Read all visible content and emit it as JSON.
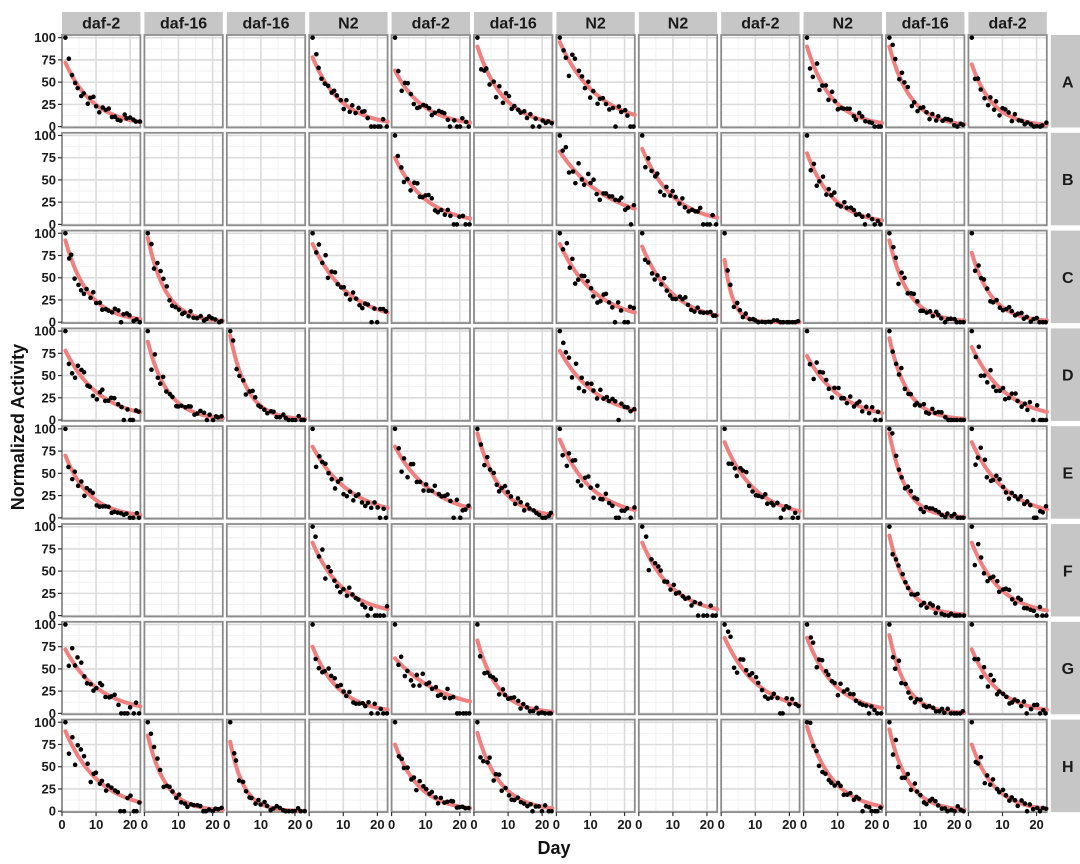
{
  "chart_data": {
    "type": "scatter",
    "title": "",
    "xlabel": "Day",
    "ylabel": "Normalized Activity",
    "xlim": [
      0,
      23
    ],
    "ylim": [
      -1,
      103
    ],
    "x_ticks": [
      0,
      10,
      20
    ],
    "y_ticks": [
      0,
      25,
      50,
      75,
      100
    ],
    "grid": true,
    "columns": [
      "daf-2",
      "daf-16",
      "daf-16",
      "N2",
      "daf-2",
      "daf-16",
      "N2",
      "N2",
      "daf-2",
      "N2",
      "daf-16",
      "daf-2"
    ],
    "rows": [
      "A",
      "B",
      "C",
      "D",
      "E",
      "F",
      "G",
      "H"
    ],
    "fit_color": "#f08080",
    "point_color": "#000000",
    "panels": [
      {
        "row": "A",
        "col": 1,
        "fit_start": 72,
        "fit_rate": 0.12
      },
      {
        "row": "A",
        "col": 4,
        "fit_start": 78,
        "fit_rate": 0.12
      },
      {
        "row": "A",
        "col": 5,
        "fit_start": 63,
        "fit_rate": 0.12
      },
      {
        "row": "A",
        "col": 6,
        "fit_start": 90,
        "fit_rate": 0.13
      },
      {
        "row": "A",
        "col": 7,
        "fit_start": 95,
        "fit_rate": 0.09
      },
      {
        "row": "A",
        "col": 10,
        "fit_start": 90,
        "fit_rate": 0.14
      },
      {
        "row": "A",
        "col": 11,
        "fit_start": 90,
        "fit_rate": 0.16
      },
      {
        "row": "A",
        "col": 12,
        "fit_start": 70,
        "fit_rate": 0.16
      },
      {
        "row": "B",
        "col": 5,
        "fit_start": 75,
        "fit_rate": 0.11
      },
      {
        "row": "B",
        "col": 7,
        "fit_start": 82,
        "fit_rate": 0.07
      },
      {
        "row": "B",
        "col": 8,
        "fit_start": 85,
        "fit_rate": 0.11
      },
      {
        "row": "B",
        "col": 10,
        "fit_start": 80,
        "fit_rate": 0.13
      },
      {
        "row": "C",
        "col": 1,
        "fit_start": 92,
        "fit_rate": 0.15
      },
      {
        "row": "C",
        "col": 2,
        "fit_start": 95,
        "fit_rate": 0.19
      },
      {
        "row": "C",
        "col": 4,
        "fit_start": 88,
        "fit_rate": 0.095
      },
      {
        "row": "C",
        "col": 7,
        "fit_start": 88,
        "fit_rate": 0.095
      },
      {
        "row": "C",
        "col": 8,
        "fit_start": 85,
        "fit_rate": 0.11
      },
      {
        "row": "C",
        "col": 9,
        "fit_start": 70,
        "fit_rate": 0.4
      },
      {
        "row": "C",
        "col": 11,
        "fit_start": 92,
        "fit_rate": 0.18
      },
      {
        "row": "C",
        "col": 12,
        "fit_start": 78,
        "fit_rate": 0.17
      },
      {
        "row": "D",
        "col": 1,
        "fit_start": 78,
        "fit_rate": 0.1
      },
      {
        "row": "D",
        "col": 2,
        "fit_start": 88,
        "fit_rate": 0.17
      },
      {
        "row": "D",
        "col": 3,
        "fit_start": 95,
        "fit_rate": 0.2
      },
      {
        "row": "D",
        "col": 7,
        "fit_start": 78,
        "fit_rate": 0.09
      },
      {
        "row": "D",
        "col": 10,
        "fit_start": 72,
        "fit_rate": 0.1
      },
      {
        "row": "D",
        "col": 11,
        "fit_start": 92,
        "fit_rate": 0.19
      },
      {
        "row": "D",
        "col": 12,
        "fit_start": 82,
        "fit_rate": 0.1
      },
      {
        "row": "E",
        "col": 1,
        "fit_start": 70,
        "fit_rate": 0.14
      },
      {
        "row": "E",
        "col": 4,
        "fit_start": 80,
        "fit_rate": 0.09
      },
      {
        "row": "E",
        "col": 5,
        "fit_start": 80,
        "fit_rate": 0.09
      },
      {
        "row": "E",
        "col": 6,
        "fit_start": 95,
        "fit_rate": 0.15
      },
      {
        "row": "E",
        "col": 7,
        "fit_start": 88,
        "fit_rate": 0.105
      },
      {
        "row": "E",
        "col": 9,
        "fit_start": 85,
        "fit_rate": 0.11
      },
      {
        "row": "E",
        "col": 11,
        "fit_start": 95,
        "fit_rate": 0.21
      },
      {
        "row": "E",
        "col": 12,
        "fit_start": 85,
        "fit_rate": 0.1
      },
      {
        "row": "F",
        "col": 4,
        "fit_start": 82,
        "fit_rate": 0.11
      },
      {
        "row": "F",
        "col": 8,
        "fit_start": 82,
        "fit_rate": 0.11
      },
      {
        "row": "F",
        "col": 11,
        "fit_start": 90,
        "fit_rate": 0.19
      },
      {
        "row": "F",
        "col": 12,
        "fit_start": 82,
        "fit_rate": 0.12
      },
      {
        "row": "G",
        "col": 1,
        "fit_start": 72,
        "fit_rate": 0.1
      },
      {
        "row": "G",
        "col": 4,
        "fit_start": 75,
        "fit_rate": 0.13
      },
      {
        "row": "G",
        "col": 5,
        "fit_start": 62,
        "fit_rate": 0.07
      },
      {
        "row": "G",
        "col": 6,
        "fit_start": 82,
        "fit_rate": 0.17
      },
      {
        "row": "G",
        "col": 9,
        "fit_start": 85,
        "fit_rate": 0.1
      },
      {
        "row": "G",
        "col": 10,
        "fit_start": 85,
        "fit_rate": 0.12
      },
      {
        "row": "G",
        "col": 11,
        "fit_start": 88,
        "fit_rate": 0.21
      },
      {
        "row": "G",
        "col": 12,
        "fit_start": 72,
        "fit_rate": 0.13
      },
      {
        "row": "H",
        "col": 1,
        "fit_start": 90,
        "fit_rate": 0.1
      },
      {
        "row": "H",
        "col": 2,
        "fit_start": 85,
        "fit_rate": 0.19
      },
      {
        "row": "H",
        "col": 3,
        "fit_start": 78,
        "fit_rate": 0.25
      },
      {
        "row": "H",
        "col": 5,
        "fit_start": 75,
        "fit_rate": 0.14
      },
      {
        "row": "H",
        "col": 6,
        "fit_start": 88,
        "fit_rate": 0.15
      },
      {
        "row": "H",
        "col": 10,
        "fit_start": 95,
        "fit_rate": 0.13
      },
      {
        "row": "H",
        "col": 11,
        "fit_start": 92,
        "fit_rate": 0.18
      },
      {
        "row": "H",
        "col": 12,
        "fit_start": 75,
        "fit_rate": 0.15
      }
    ]
  }
}
